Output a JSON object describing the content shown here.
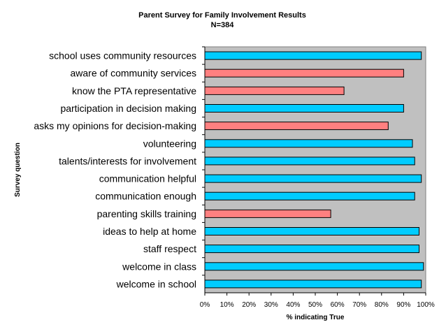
{
  "chart_data": {
    "type": "bar",
    "orientation": "horizontal",
    "title": "Parent Survey for Family Involvement Results",
    "subtitle": "N=384",
    "xlabel": "% indicating True",
    "ylabel": "Survey question",
    "xlim": [
      0,
      100
    ],
    "xticks": [
      "0%",
      "10%",
      "20%",
      "30%",
      "40%",
      "50%",
      "60%",
      "70%",
      "80%",
      "90%",
      "100%"
    ],
    "grid": false,
    "legend": "none",
    "plot_background": "#c0c0c0",
    "categories": [
      "school uses community resources",
      "aware of community services",
      "know the PTA representative",
      "participation in decision making",
      "asks my opinions for decision-making",
      "volunteering",
      "talents/interests for involvement",
      "communication helpful",
      "communication enough",
      "parenting skills training",
      "ideas to help at home",
      "staff respect",
      "welcome in class",
      "welcome in school"
    ],
    "values": [
      98,
      90,
      63,
      90,
      83,
      94,
      95,
      98,
      95,
      57,
      97,
      97,
      99,
      98
    ],
    "bar_colors": [
      "#00ccff",
      "#ff8080",
      "#ff8080",
      "#00ccff",
      "#ff8080",
      "#00ccff",
      "#00ccff",
      "#00ccff",
      "#00ccff",
      "#ff8080",
      "#00ccff",
      "#00ccff",
      "#00ccff",
      "#00ccff"
    ]
  }
}
